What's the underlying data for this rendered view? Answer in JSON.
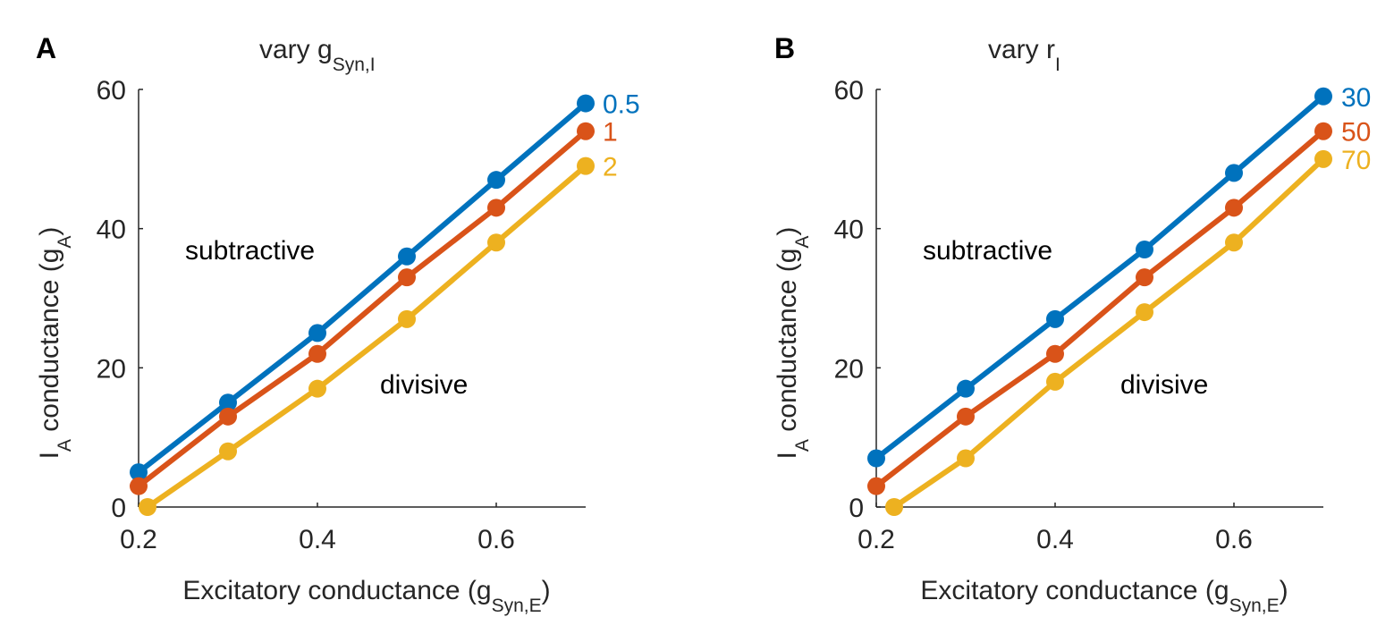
{
  "chart_data": [
    {
      "type": "line",
      "panel_label": "A",
      "title": {
        "prefix": "vary g",
        "subscript": "Syn,I"
      },
      "xlabel": {
        "prefix": "Excitatory conductance (g",
        "subscript": "Syn,E",
        "suffix": ")"
      },
      "ylabel": {
        "prefix": "I",
        "subscript": "A",
        "middle": " conductance (g",
        "subscript2": "A",
        "suffix": ")"
      },
      "xlim": [
        0.2,
        0.7
      ],
      "ylim": [
        0,
        60
      ],
      "xticks": [
        "0.2",
        "0.4",
        "0.6"
      ],
      "yticks": [
        "0",
        "20",
        "40",
        "60"
      ],
      "annotations": {
        "subtractive": "subtractive",
        "divisive": "divisive"
      },
      "series": [
        {
          "name": "0.5",
          "color": "#0072BD",
          "x": [
            0.2,
            0.3,
            0.4,
            0.5,
            0.6,
            0.7
          ],
          "y": [
            5,
            15,
            25,
            36,
            47,
            58
          ]
        },
        {
          "name": "1",
          "color": "#D95319",
          "x": [
            0.2,
            0.3,
            0.4,
            0.5,
            0.6,
            0.7
          ],
          "y": [
            3,
            13,
            22,
            33,
            43,
            54
          ]
        },
        {
          "name": "2",
          "color": "#EDB120",
          "x": [
            0.21,
            0.3,
            0.4,
            0.5,
            0.6,
            0.7
          ],
          "y": [
            0,
            8,
            17,
            27,
            38,
            49
          ]
        }
      ]
    },
    {
      "type": "line",
      "panel_label": "B",
      "title": {
        "prefix": "vary r",
        "subscript": "I"
      },
      "xlabel": {
        "prefix": "Excitatory conductance (g",
        "subscript": "Syn,E",
        "suffix": ")"
      },
      "ylabel": {
        "prefix": "I",
        "subscript": "A",
        "middle": " conductance (g",
        "subscript2": "A",
        "suffix": ")"
      },
      "xlim": [
        0.2,
        0.7
      ],
      "ylim": [
        0,
        60
      ],
      "xticks": [
        "0.2",
        "0.4",
        "0.6"
      ],
      "yticks": [
        "0",
        "20",
        "40",
        "60"
      ],
      "annotations": {
        "subtractive": "subtractive",
        "divisive": "divisive"
      },
      "series": [
        {
          "name": "30",
          "color": "#0072BD",
          "x": [
            0.2,
            0.3,
            0.4,
            0.5,
            0.6,
            0.7
          ],
          "y": [
            7,
            17,
            27,
            37,
            48,
            59
          ]
        },
        {
          "name": "50",
          "color": "#D95319",
          "x": [
            0.2,
            0.3,
            0.4,
            0.5,
            0.6,
            0.7
          ],
          "y": [
            3,
            13,
            22,
            33,
            43,
            54
          ]
        },
        {
          "name": "70",
          "color": "#EDB120",
          "x": [
            0.22,
            0.3,
            0.4,
            0.5,
            0.6,
            0.7
          ],
          "y": [
            0,
            7,
            18,
            28,
            38,
            50
          ]
        }
      ]
    }
  ]
}
